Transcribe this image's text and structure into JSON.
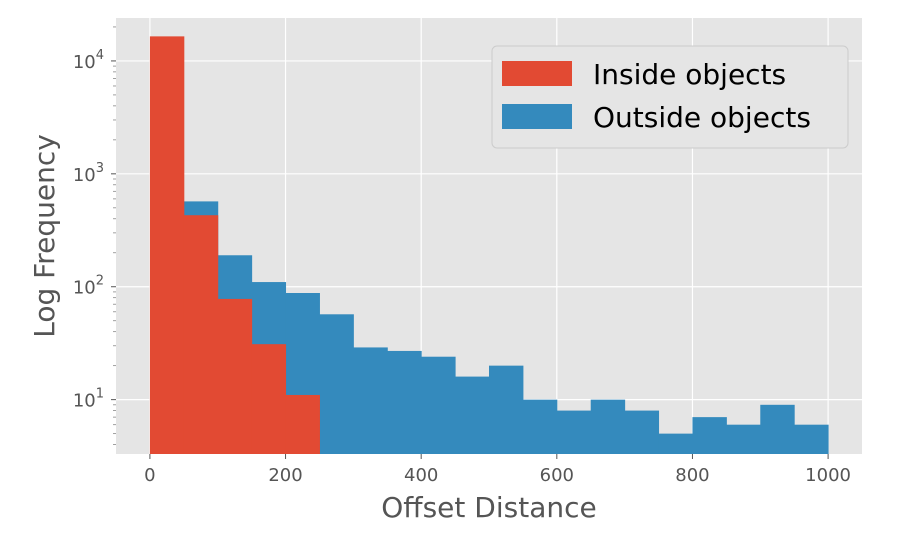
{
  "chart_data": {
    "type": "bar",
    "subtype": "histogram",
    "xlabel": "Offset Distance",
    "ylabel": "Log Frequency",
    "xlim": [
      -50,
      1050
    ],
    "ylim": [
      3.3,
      24000
    ],
    "y_scale": "log",
    "grid": true,
    "legend_position": "top-right",
    "bin_width": 50,
    "x_ticks": [
      0,
      200,
      400,
      600,
      800,
      1000
    ],
    "y_ticks": [
      {
        "value": 10,
        "base": "10",
        "exp": "1"
      },
      {
        "value": 100,
        "base": "10",
        "exp": "2"
      },
      {
        "value": 1000,
        "base": "10",
        "exp": "3"
      },
      {
        "value": 10000,
        "base": "10",
        "exp": "4"
      }
    ],
    "series": [
      {
        "name": "Outside objects",
        "color": "#348ABD",
        "bins": [
          {
            "x0": 0,
            "x1": 50,
            "value": 0
          },
          {
            "x0": 50,
            "x1": 100,
            "value": 570
          },
          {
            "x0": 100,
            "x1": 150,
            "value": 190
          },
          {
            "x0": 150,
            "x1": 200,
            "value": 110
          },
          {
            "x0": 200,
            "x1": 250,
            "value": 88
          },
          {
            "x0": 250,
            "x1": 300,
            "value": 57
          },
          {
            "x0": 300,
            "x1": 350,
            "value": 29
          },
          {
            "x0": 350,
            "x1": 400,
            "value": 27
          },
          {
            "x0": 400,
            "x1": 450,
            "value": 24
          },
          {
            "x0": 450,
            "x1": 500,
            "value": 16
          },
          {
            "x0": 500,
            "x1": 550,
            "value": 20
          },
          {
            "x0": 550,
            "x1": 600,
            "value": 10
          },
          {
            "x0": 600,
            "x1": 650,
            "value": 8
          },
          {
            "x0": 650,
            "x1": 700,
            "value": 10
          },
          {
            "x0": 700,
            "x1": 750,
            "value": 8
          },
          {
            "x0": 750,
            "x1": 800,
            "value": 5
          },
          {
            "x0": 800,
            "x1": 850,
            "value": 7
          },
          {
            "x0": 850,
            "x1": 900,
            "value": 6
          },
          {
            "x0": 900,
            "x1": 950,
            "value": 9
          },
          {
            "x0": 950,
            "x1": 1000,
            "value": 6
          }
        ]
      },
      {
        "name": "Inside objects",
        "color": "#E24A33",
        "bins": [
          {
            "x0": 0,
            "x1": 50,
            "value": 16500
          },
          {
            "x0": 50,
            "x1": 100,
            "value": 430
          },
          {
            "x0": 100,
            "x1": 150,
            "value": 78
          },
          {
            "x0": 150,
            "x1": 200,
            "value": 31
          },
          {
            "x0": 200,
            "x1": 250,
            "value": 11
          }
        ]
      }
    ],
    "legend": [
      {
        "label": "Inside objects",
        "color": "#E24A33"
      },
      {
        "label": "Outside objects",
        "color": "#348ABD"
      }
    ],
    "colors": {
      "plot_background": "#E5E5E5",
      "grid": "#FFFFFF",
      "text": "#555555"
    }
  }
}
